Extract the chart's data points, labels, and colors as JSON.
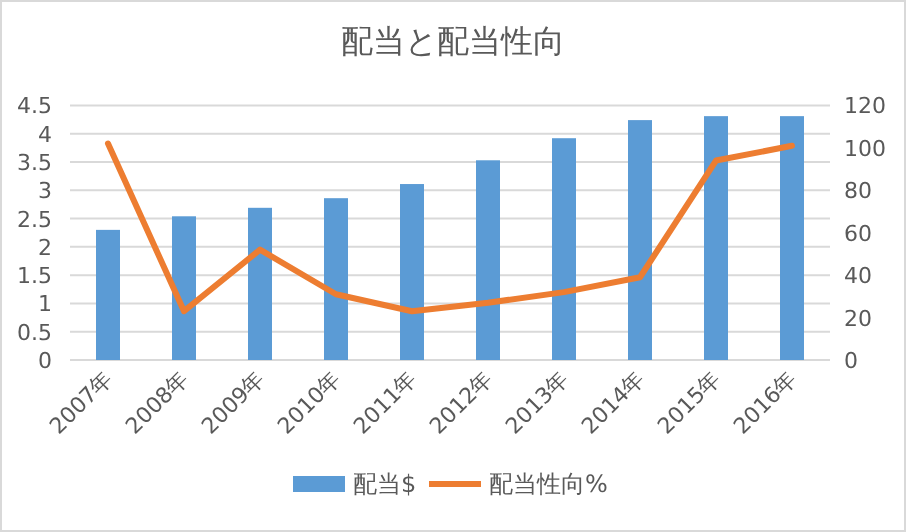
{
  "chart_data": {
    "type": "bar",
    "title": "配当と配当性向",
    "categories": [
      "2007年",
      "2008年",
      "2009年",
      "2010年",
      "2011年",
      "2012年",
      "2013年",
      "2014年",
      "2015年",
      "2016年"
    ],
    "series": [
      {
        "name": "配当$",
        "color": "#5b9bd5",
        "values": [
          2.3,
          2.54,
          2.69,
          2.86,
          3.11,
          3.53,
          3.92,
          4.24,
          4.31,
          4.31
        ]
      },
      {
        "name": "配当性向%",
        "type": "line",
        "axis": "y2",
        "color": "#ed7d31",
        "values": [
          102,
          23,
          52,
          31,
          23,
          27,
          32,
          39,
          94,
          101
        ]
      }
    ],
    "ylim": [
      0,
      4.5
    ],
    "yticks": [
      0,
      0.5,
      1,
      1.5,
      2,
      2.5,
      3,
      3.5,
      4,
      4.5
    ],
    "y2lim": [
      0,
      120
    ],
    "y2ticks": [
      0,
      20,
      40,
      60,
      80,
      100,
      120
    ],
    "grid": "y",
    "legend": "bottom"
  }
}
